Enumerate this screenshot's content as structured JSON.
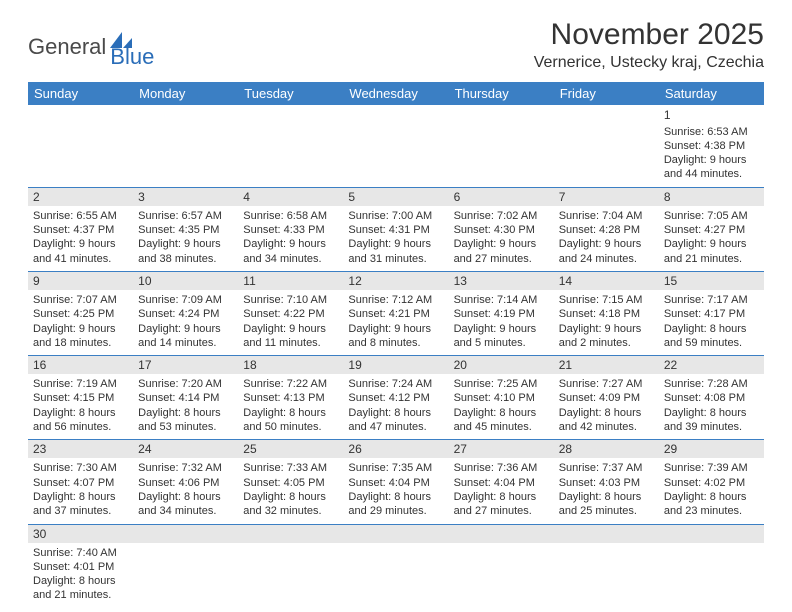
{
  "logo": {
    "part1": "General",
    "part2": "Blue"
  },
  "title": "November 2025",
  "location": "Vernerice, Ustecky kraj, Czechia",
  "colors": {
    "header_bg": "#3b7fc4",
    "header_text": "#ffffff",
    "numrow_bg": "#e7e7e7",
    "border": "#3b7fc4",
    "text": "#333333",
    "logo_gray": "#4a4a4a",
    "logo_blue": "#2a6db8"
  },
  "daynames": [
    "Sunday",
    "Monday",
    "Tuesday",
    "Wednesday",
    "Thursday",
    "Friday",
    "Saturday"
  ],
  "weeks": [
    [
      null,
      null,
      null,
      null,
      null,
      null,
      {
        "n": "1",
        "sr": "Sunrise: 6:53 AM",
        "ss": "Sunset: 4:38 PM",
        "d1": "Daylight: 9 hours",
        "d2": "and 44 minutes."
      }
    ],
    [
      {
        "n": "2",
        "sr": "Sunrise: 6:55 AM",
        "ss": "Sunset: 4:37 PM",
        "d1": "Daylight: 9 hours",
        "d2": "and 41 minutes."
      },
      {
        "n": "3",
        "sr": "Sunrise: 6:57 AM",
        "ss": "Sunset: 4:35 PM",
        "d1": "Daylight: 9 hours",
        "d2": "and 38 minutes."
      },
      {
        "n": "4",
        "sr": "Sunrise: 6:58 AM",
        "ss": "Sunset: 4:33 PM",
        "d1": "Daylight: 9 hours",
        "d2": "and 34 minutes."
      },
      {
        "n": "5",
        "sr": "Sunrise: 7:00 AM",
        "ss": "Sunset: 4:31 PM",
        "d1": "Daylight: 9 hours",
        "d2": "and 31 minutes."
      },
      {
        "n": "6",
        "sr": "Sunrise: 7:02 AM",
        "ss": "Sunset: 4:30 PM",
        "d1": "Daylight: 9 hours",
        "d2": "and 27 minutes."
      },
      {
        "n": "7",
        "sr": "Sunrise: 7:04 AM",
        "ss": "Sunset: 4:28 PM",
        "d1": "Daylight: 9 hours",
        "d2": "and 24 minutes."
      },
      {
        "n": "8",
        "sr": "Sunrise: 7:05 AM",
        "ss": "Sunset: 4:27 PM",
        "d1": "Daylight: 9 hours",
        "d2": "and 21 minutes."
      }
    ],
    [
      {
        "n": "9",
        "sr": "Sunrise: 7:07 AM",
        "ss": "Sunset: 4:25 PM",
        "d1": "Daylight: 9 hours",
        "d2": "and 18 minutes."
      },
      {
        "n": "10",
        "sr": "Sunrise: 7:09 AM",
        "ss": "Sunset: 4:24 PM",
        "d1": "Daylight: 9 hours",
        "d2": "and 14 minutes."
      },
      {
        "n": "11",
        "sr": "Sunrise: 7:10 AM",
        "ss": "Sunset: 4:22 PM",
        "d1": "Daylight: 9 hours",
        "d2": "and 11 minutes."
      },
      {
        "n": "12",
        "sr": "Sunrise: 7:12 AM",
        "ss": "Sunset: 4:21 PM",
        "d1": "Daylight: 9 hours",
        "d2": "and 8 minutes."
      },
      {
        "n": "13",
        "sr": "Sunrise: 7:14 AM",
        "ss": "Sunset: 4:19 PM",
        "d1": "Daylight: 9 hours",
        "d2": "and 5 minutes."
      },
      {
        "n": "14",
        "sr": "Sunrise: 7:15 AM",
        "ss": "Sunset: 4:18 PM",
        "d1": "Daylight: 9 hours",
        "d2": "and 2 minutes."
      },
      {
        "n": "15",
        "sr": "Sunrise: 7:17 AM",
        "ss": "Sunset: 4:17 PM",
        "d1": "Daylight: 8 hours",
        "d2": "and 59 minutes."
      }
    ],
    [
      {
        "n": "16",
        "sr": "Sunrise: 7:19 AM",
        "ss": "Sunset: 4:15 PM",
        "d1": "Daylight: 8 hours",
        "d2": "and 56 minutes."
      },
      {
        "n": "17",
        "sr": "Sunrise: 7:20 AM",
        "ss": "Sunset: 4:14 PM",
        "d1": "Daylight: 8 hours",
        "d2": "and 53 minutes."
      },
      {
        "n": "18",
        "sr": "Sunrise: 7:22 AM",
        "ss": "Sunset: 4:13 PM",
        "d1": "Daylight: 8 hours",
        "d2": "and 50 minutes."
      },
      {
        "n": "19",
        "sr": "Sunrise: 7:24 AM",
        "ss": "Sunset: 4:12 PM",
        "d1": "Daylight: 8 hours",
        "d2": "and 47 minutes."
      },
      {
        "n": "20",
        "sr": "Sunrise: 7:25 AM",
        "ss": "Sunset: 4:10 PM",
        "d1": "Daylight: 8 hours",
        "d2": "and 45 minutes."
      },
      {
        "n": "21",
        "sr": "Sunrise: 7:27 AM",
        "ss": "Sunset: 4:09 PM",
        "d1": "Daylight: 8 hours",
        "d2": "and 42 minutes."
      },
      {
        "n": "22",
        "sr": "Sunrise: 7:28 AM",
        "ss": "Sunset: 4:08 PM",
        "d1": "Daylight: 8 hours",
        "d2": "and 39 minutes."
      }
    ],
    [
      {
        "n": "23",
        "sr": "Sunrise: 7:30 AM",
        "ss": "Sunset: 4:07 PM",
        "d1": "Daylight: 8 hours",
        "d2": "and 37 minutes."
      },
      {
        "n": "24",
        "sr": "Sunrise: 7:32 AM",
        "ss": "Sunset: 4:06 PM",
        "d1": "Daylight: 8 hours",
        "d2": "and 34 minutes."
      },
      {
        "n": "25",
        "sr": "Sunrise: 7:33 AM",
        "ss": "Sunset: 4:05 PM",
        "d1": "Daylight: 8 hours",
        "d2": "and 32 minutes."
      },
      {
        "n": "26",
        "sr": "Sunrise: 7:35 AM",
        "ss": "Sunset: 4:04 PM",
        "d1": "Daylight: 8 hours",
        "d2": "and 29 minutes."
      },
      {
        "n": "27",
        "sr": "Sunrise: 7:36 AM",
        "ss": "Sunset: 4:04 PM",
        "d1": "Daylight: 8 hours",
        "d2": "and 27 minutes."
      },
      {
        "n": "28",
        "sr": "Sunrise: 7:37 AM",
        "ss": "Sunset: 4:03 PM",
        "d1": "Daylight: 8 hours",
        "d2": "and 25 minutes."
      },
      {
        "n": "29",
        "sr": "Sunrise: 7:39 AM",
        "ss": "Sunset: 4:02 PM",
        "d1": "Daylight: 8 hours",
        "d2": "and 23 minutes."
      }
    ],
    [
      {
        "n": "30",
        "sr": "Sunrise: 7:40 AM",
        "ss": "Sunset: 4:01 PM",
        "d1": "Daylight: 8 hours",
        "d2": "and 21 minutes."
      },
      null,
      null,
      null,
      null,
      null,
      null
    ]
  ]
}
